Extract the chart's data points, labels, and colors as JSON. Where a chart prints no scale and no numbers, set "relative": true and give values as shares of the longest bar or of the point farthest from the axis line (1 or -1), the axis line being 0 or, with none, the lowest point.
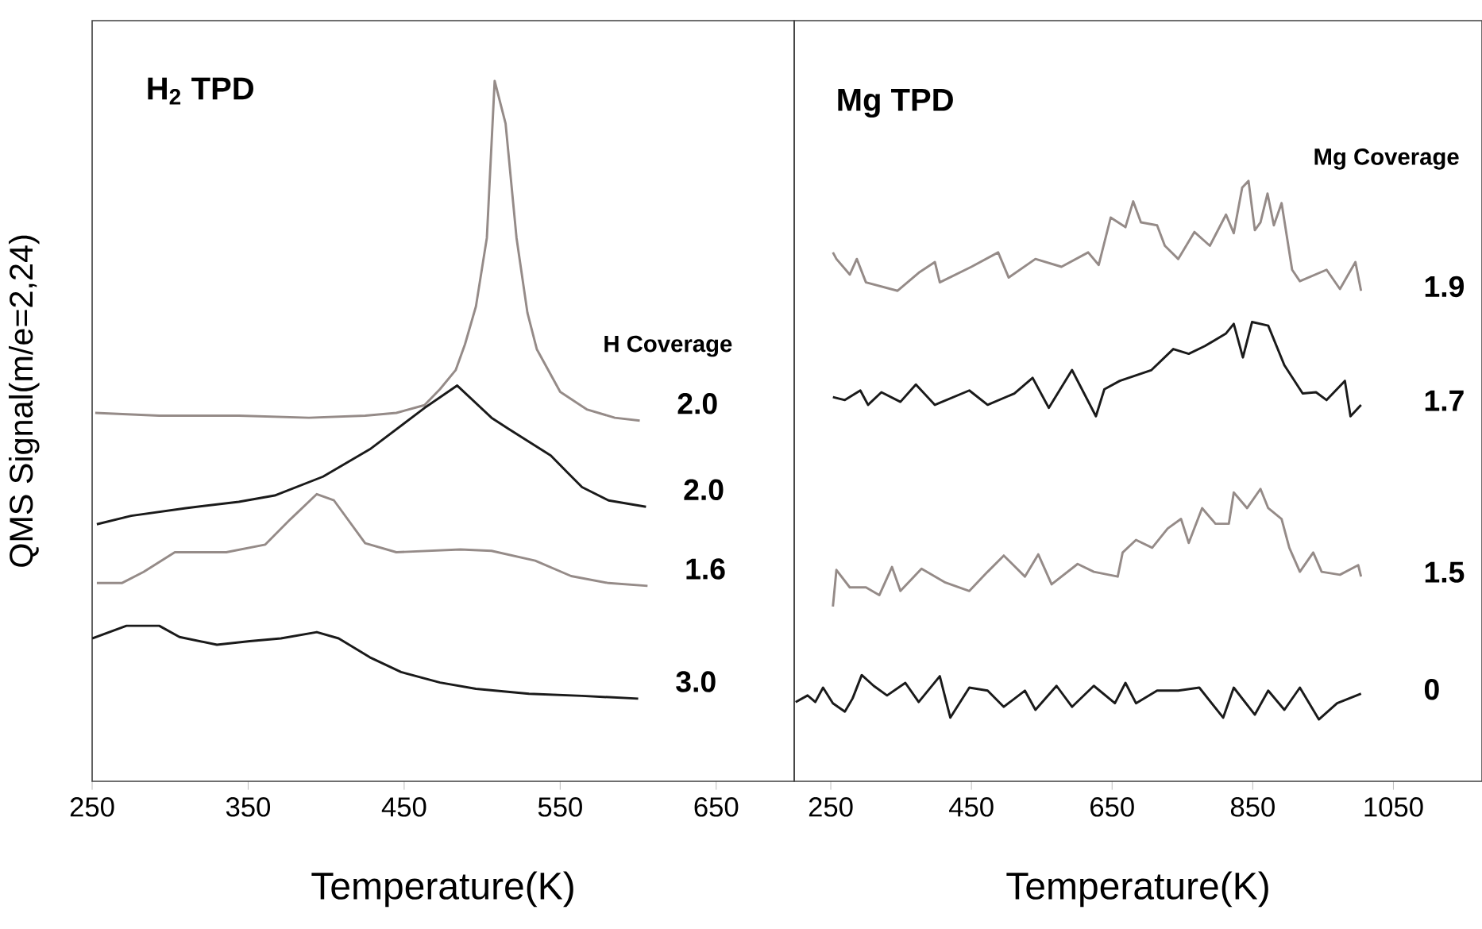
{
  "chart_data": [
    {
      "type": "line",
      "title": "H$_{2}$ TPD",
      "xlabel": "Temperature(K)",
      "ylabel": "QMS Signal(m/e=2,24)",
      "legend_title": "H Coverage",
      "relative": true,
      "xlim": [
        250,
        700
      ],
      "xticks": [
        250,
        350,
        450,
        550,
        650
      ],
      "series": [
        {
          "name": "2.0",
          "color": "#958b88",
          "x": [
            252,
            293,
            344,
            389,
            425,
            445,
            463,
            473,
            483,
            489,
            496,
            503,
            508,
            515,
            522,
            529,
            535,
            550,
            567,
            585,
            601
          ],
          "values": [
            0.526,
            0.522,
            0.522,
            0.519,
            0.522,
            0.526,
            0.537,
            0.56,
            0.587,
            0.624,
            0.678,
            0.776,
            1.0,
            0.939,
            0.776,
            0.669,
            0.617,
            0.556,
            0.531,
            0.519,
            0.515
          ]
        },
        {
          "name": "2.0",
          "color": "#1a1a1a",
          "x": [
            253,
            275,
            310,
            344,
            367,
            398,
            428,
            463,
            484,
            506,
            517,
            544,
            555,
            564,
            581,
            605
          ],
          "values": [
            0.367,
            0.379,
            0.39,
            0.399,
            0.408,
            0.435,
            0.474,
            0.533,
            0.565,
            0.519,
            0.503,
            0.465,
            0.44,
            0.42,
            0.401,
            0.392
          ]
        },
        {
          "name": "1.6",
          "color": "#958b88",
          "x": [
            253,
            269,
            283,
            303,
            336,
            361,
            377,
            394,
            405,
            425,
            445,
            486,
            506,
            534,
            557,
            581,
            606
          ],
          "values": [
            0.283,
            0.283,
            0.299,
            0.327,
            0.327,
            0.338,
            0.374,
            0.41,
            0.401,
            0.34,
            0.327,
            0.331,
            0.329,
            0.315,
            0.293,
            0.283,
            0.279
          ]
        },
        {
          "name": "3.0",
          "color": "#1a1a1a",
          "x": [
            250,
            272,
            293,
            306,
            330,
            351,
            371,
            394,
            408,
            428,
            448,
            473,
            496,
            530,
            564,
            600
          ],
          "values": [
            0.204,
            0.222,
            0.222,
            0.206,
            0.195,
            0.2,
            0.204,
            0.213,
            0.204,
            0.177,
            0.156,
            0.141,
            0.132,
            0.125,
            0.122,
            0.118
          ]
        }
      ]
    },
    {
      "type": "line",
      "title": "Mg TPD",
      "xlabel": "Temperature(K)",
      "legend_title": "Mg Coverage",
      "relative": true,
      "xlim": [
        198,
        1176
      ],
      "xticks": [
        250,
        450,
        650,
        850,
        1050
      ],
      "series": [
        {
          "name": "1.9",
          "color": "#958b88",
          "x": [
            253,
            258,
            277,
            287,
            300,
            345,
            375,
            398,
            405,
            450,
            488,
            503,
            541,
            578,
            616,
            631,
            648,
            669,
            680,
            691,
            714,
            725,
            744,
            767,
            789,
            812,
            823,
            835,
            844,
            853,
            861,
            871,
            880,
            891,
            906,
            917,
            955,
            974,
            996,
            1004
          ],
          "values": [
            0.881,
            0.87,
            0.844,
            0.87,
            0.831,
            0.817,
            0.847,
            0.865,
            0.831,
            0.857,
            0.881,
            0.839,
            0.87,
            0.857,
            0.881,
            0.86,
            0.939,
            0.923,
            0.966,
            0.931,
            0.926,
            0.892,
            0.87,
            0.915,
            0.892,
            0.944,
            0.913,
            0.989,
            1.0,
            0.918,
            0.931,
            0.979,
            0.926,
            0.963,
            0.852,
            0.833,
            0.852,
            0.82,
            0.865,
            0.817
          ]
        },
        {
          "name": "1.7",
          "color": "#1a1a1a",
          "x": [
            253,
            270,
            292,
            303,
            322,
            349,
            371,
            398,
            447,
            473,
            511,
            537,
            560,
            593,
            627,
            639,
            661,
            706,
            737,
            759,
            782,
            812,
            823,
            836,
            849,
            872,
            895,
            921,
            940,
            955,
            981,
            989,
            1004
          ],
          "values": [
            0.64,
            0.635,
            0.651,
            0.627,
            0.648,
            0.632,
            0.661,
            0.627,
            0.651,
            0.627,
            0.646,
            0.672,
            0.622,
            0.685,
            0.608,
            0.653,
            0.667,
            0.685,
            0.72,
            0.712,
            0.725,
            0.746,
            0.762,
            0.706,
            0.765,
            0.759,
            0.693,
            0.646,
            0.648,
            0.635,
            0.667,
            0.608,
            0.627
          ]
        },
        {
          "name": "1.5",
          "color": "#958b88",
          "x": [
            253,
            258,
            277,
            300,
            319,
            337,
            349,
            379,
            413,
            447,
            473,
            496,
            526,
            545,
            564,
            601,
            624,
            658,
            665,
            684,
            707,
            729,
            748,
            759,
            778,
            797,
            816,
            823,
            842,
            861,
            872,
            891,
            902,
            917,
            936,
            948,
            974,
            1000,
            1004
          ],
          "values": [
            0.291,
            0.352,
            0.323,
            0.323,
            0.31,
            0.357,
            0.317,
            0.354,
            0.331,
            0.317,
            0.349,
            0.376,
            0.341,
            0.378,
            0.328,
            0.362,
            0.349,
            0.341,
            0.381,
            0.402,
            0.389,
            0.421,
            0.437,
            0.397,
            0.455,
            0.429,
            0.429,
            0.481,
            0.455,
            0.487,
            0.455,
            0.437,
            0.389,
            0.349,
            0.381,
            0.349,
            0.344,
            0.36,
            0.341
          ]
        },
        {
          "name": "0",
          "color": "#1a1a1a",
          "x": [
            200,
            217,
            228,
            239,
            253,
            270,
            281,
            294,
            311,
            330,
            356,
            375,
            405,
            420,
            447,
            473,
            496,
            526,
            541,
            571,
            593,
            624,
            654,
            669,
            684,
            714,
            744,
            774,
            808,
            823,
            853,
            872,
            895,
            917,
            944,
            970,
            1004
          ],
          "values": [
            0.132,
            0.143,
            0.132,
            0.156,
            0.13,
            0.116,
            0.138,
            0.177,
            0.159,
            0.143,
            0.164,
            0.132,
            0.175,
            0.106,
            0.156,
            0.151,
            0.124,
            0.151,
            0.119,
            0.159,
            0.124,
            0.159,
            0.13,
            0.164,
            0.13,
            0.151,
            0.151,
            0.156,
            0.106,
            0.156,
            0.111,
            0.151,
            0.119,
            0.156,
            0.103,
            0.13,
            0.146
          ]
        }
      ]
    }
  ]
}
